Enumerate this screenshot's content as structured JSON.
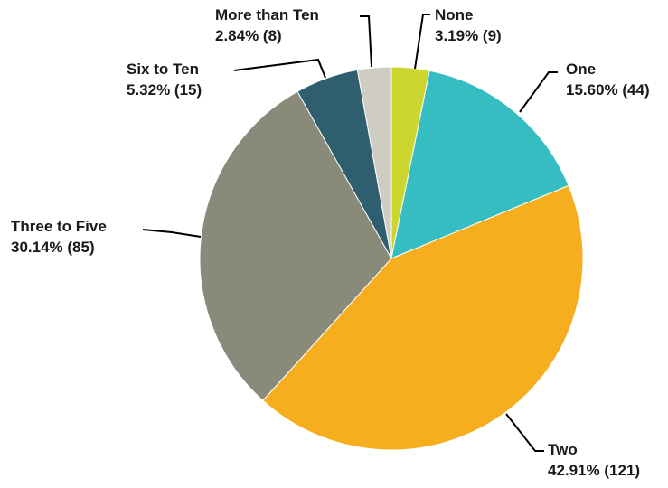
{
  "chart_data": {
    "type": "pie",
    "title": "",
    "start_angle_deg": 0,
    "direction": "clockwise",
    "legend": "none",
    "slices": [
      {
        "label": "None",
        "percent": 3.19,
        "count": 9,
        "percent_text": "3.19% (9)",
        "color": "#cdd62e"
      },
      {
        "label": "One",
        "percent": 15.6,
        "count": 44,
        "percent_text": "15.60% (44)",
        "color": "#35bdc1"
      },
      {
        "label": "Two",
        "percent": 42.91,
        "count": 121,
        "percent_text": "42.91% (121)",
        "color": "#f6ae1f"
      },
      {
        "label": "Three to Five",
        "percent": 30.14,
        "count": 85,
        "percent_text": "30.14% (85)",
        "color": "#8a8a7b"
      },
      {
        "label": "Six to Ten",
        "percent": 5.32,
        "count": 15,
        "percent_text": "5.32% (15)",
        "color": "#2f5f6e"
      },
      {
        "label": "More than Ten",
        "percent": 2.84,
        "count": 8,
        "percent_text": "2.84% (8)",
        "color": "#cfcdc1"
      }
    ]
  }
}
